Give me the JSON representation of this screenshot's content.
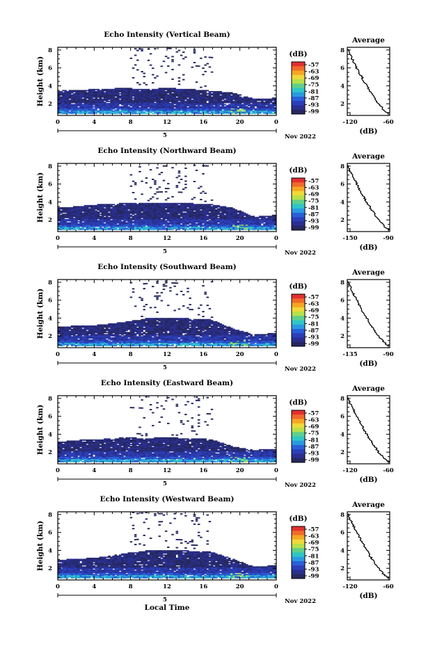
{
  "figure": {
    "bottom_xlabel": "Local Time",
    "date_label": "Nov 2022",
    "day_label": "5",
    "heatmap_xticks": [
      "0",
      "4",
      "8",
      "12",
      "16",
      "20",
      "0"
    ],
    "heatmap_yticks": [
      "2",
      "4",
      "6",
      "8"
    ],
    "heatmap_ylabel": "Height (km)",
    "colorbar_unit": "(dB)",
    "colorbar_ticks": [
      "-57",
      "-63",
      "-69",
      "-75",
      "-81",
      "-87",
      "-93",
      "-99"
    ],
    "colorbar_colors": [
      "#e03030",
      "#f06a2a",
      "#f5a623",
      "#f0d83a",
      "#b7e04a",
      "#5fd08a",
      "#2fc6c6",
      "#2a9ae0",
      "#2a60d8",
      "#2b3fb8",
      "#2a2f90",
      "#262860"
    ],
    "profile_title": "Average",
    "profile_xlabel": "(dB)",
    "profile_yticks": [
      "2",
      "4",
      "6",
      "8"
    ],
    "colors": {
      "low": "#262860",
      "mid": "#2a60d8",
      "high": "#2fc6c6",
      "hot": "#b7e04a"
    }
  },
  "chart_data": [
    {
      "type": "heatmap",
      "title": "Echo Intensity (Vertical Beam)",
      "xlabel": "",
      "ylabel": "Height (km)",
      "x_range": [
        0,
        24
      ],
      "y_range": [
        0.7,
        8.3
      ],
      "layer_top_km": [
        3.4,
        3.5,
        3.6,
        3.7,
        3.6,
        3.7,
        3.6,
        3.4,
        3.2,
        2.5,
        2.6
      ],
      "colorbar": {
        "range": [
          -99,
          -57
        ],
        "ticks": [
          -57,
          -63,
          -69,
          -75,
          -81,
          -87,
          -93,
          -99
        ]
      },
      "profile": {
        "title": "Average",
        "x_ticks": [
          "-120",
          "-60"
        ],
        "x_range": [
          -120,
          -60
        ],
        "xlabel": "(dB)",
        "y_range": [
          0.7,
          8.3
        ]
      }
    },
    {
      "type": "heatmap",
      "title": "Echo Intensity (Northward Beam)",
      "xlabel": "",
      "ylabel": "Height (km)",
      "x_range": [
        0,
        24
      ],
      "y_range": [
        0.7,
        8.3
      ],
      "layer_top_km": [
        3.3,
        3.5,
        3.7,
        3.8,
        3.8,
        3.9,
        3.8,
        3.7,
        3.3,
        2.3,
        2.5
      ],
      "colorbar": {
        "range": [
          -99,
          -57
        ],
        "ticks": [
          -57,
          -63,
          -69,
          -75,
          -81,
          -87,
          -93,
          -99
        ]
      },
      "profile": {
        "title": "Average",
        "x_ticks": [
          "-150",
          "-90"
        ],
        "x_range": [
          -150,
          -90
        ],
        "xlabel": "(dB)",
        "y_range": [
          0.7,
          8.3
        ]
      }
    },
    {
      "type": "heatmap",
      "title": "Echo Intensity (Southward Beam)",
      "xlabel": "",
      "ylabel": "Height (km)",
      "x_range": [
        0,
        24
      ],
      "y_range": [
        0.7,
        8.3
      ],
      "layer_top_km": [
        3.0,
        3.1,
        3.2,
        3.5,
        3.9,
        4.0,
        3.9,
        3.8,
        2.8,
        2.1,
        2.3
      ],
      "colorbar": {
        "range": [
          -99,
          -57
        ],
        "ticks": [
          -57,
          -63,
          -69,
          -75,
          -81,
          -87,
          -93,
          -99
        ]
      },
      "profile": {
        "title": "Average",
        "x_ticks": [
          "-135",
          "-90"
        ],
        "x_range": [
          -135,
          -90
        ],
        "xlabel": "(dB)",
        "y_range": [
          0.7,
          8.3
        ]
      }
    },
    {
      "type": "heatmap",
      "title": "Echo Intensity (Eastward Beam)",
      "xlabel": "",
      "ylabel": "Height (km)",
      "x_range": [
        0,
        24
      ],
      "y_range": [
        0.7,
        8.3
      ],
      "layer_top_km": [
        3.1,
        3.3,
        3.4,
        3.6,
        3.5,
        3.6,
        3.5,
        3.4,
        2.6,
        2.2,
        2.3
      ],
      "colorbar": {
        "range": [
          -99,
          -57
        ],
        "ticks": [
          -57,
          -63,
          -69,
          -75,
          -81,
          -87,
          -93,
          -99
        ]
      },
      "profile": {
        "title": "Average",
        "x_ticks": [
          "-120",
          "-60"
        ],
        "x_range": [
          -120,
          -60
        ],
        "xlabel": "(dB)",
        "y_range": [
          0.7,
          8.3
        ]
      }
    },
    {
      "type": "heatmap",
      "title": "Echo Intensity (Westward Beam)",
      "xlabel": "Local Time",
      "ylabel": "Height (km)",
      "x_range": [
        0,
        24
      ],
      "y_range": [
        0.7,
        8.3
      ],
      "layer_top_km": [
        2.9,
        3.0,
        3.2,
        3.6,
        3.9,
        4.0,
        3.9,
        3.8,
        3.0,
        2.1,
        2.3
      ],
      "colorbar": {
        "range": [
          -99,
          -57
        ],
        "ticks": [
          -57,
          -63,
          -69,
          -75,
          -81,
          -87,
          -93,
          -99
        ]
      },
      "profile": {
        "title": "Average",
        "x_ticks": [
          "-120",
          "-60"
        ],
        "x_range": [
          -120,
          -60
        ],
        "xlabel": "(dB)",
        "y_range": [
          0.7,
          8.3
        ]
      }
    }
  ]
}
